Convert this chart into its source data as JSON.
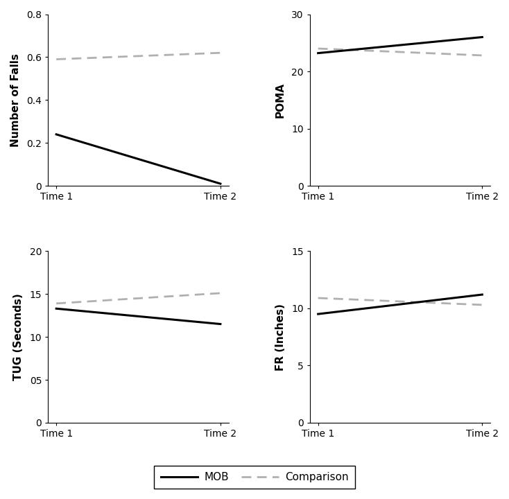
{
  "subplots": [
    {
      "ylabel": "Number of Falls",
      "ylim": [
        0,
        0.8
      ],
      "yticks": [
        0,
        0.2,
        0.4,
        0.6,
        0.8
      ],
      "ytick_labels": [
        "0",
        "0.2",
        "0.4",
        "0.6",
        "0.8"
      ],
      "mob": [
        0.24,
        0.01
      ],
      "comparison": [
        0.59,
        0.62
      ]
    },
    {
      "ylabel": "POMA",
      "ylim": [
        0,
        30
      ],
      "yticks": [
        0,
        10,
        20,
        30
      ],
      "ytick_labels": [
        "0",
        "10",
        "20",
        "30"
      ],
      "mob": [
        23.2,
        26.0
      ],
      "comparison": [
        24.0,
        22.8
      ]
    },
    {
      "ylabel": "TUG (Seconds)",
      "ylim": [
        0,
        20
      ],
      "yticks": [
        0,
        5,
        10,
        15,
        20
      ],
      "ytick_labels": [
        "0",
        "05",
        "10",
        "15",
        "20"
      ],
      "mob": [
        13.3,
        11.5
      ],
      "comparison": [
        13.9,
        15.1
      ]
    },
    {
      "ylabel": "FR (Inches)",
      "ylim": [
        0,
        15
      ],
      "yticks": [
        0,
        5,
        10,
        15
      ],
      "ytick_labels": [
        "0",
        "5",
        "10",
        "15"
      ],
      "mob": [
        9.5,
        11.2
      ],
      "comparison": [
        10.9,
        10.3
      ]
    }
  ],
  "xtick_labels": [
    "Time 1",
    "Time 2"
  ],
  "mob_color": "#000000",
  "comparison_color": "#b0b0b0",
  "mob_lw": 2.2,
  "comparison_lw": 2.0,
  "legend_mob_label": "MOB",
  "legend_comparison_label": "Comparison",
  "background_color": "#ffffff",
  "tick_fontsize": 10,
  "ylabel_fontsize": 11
}
